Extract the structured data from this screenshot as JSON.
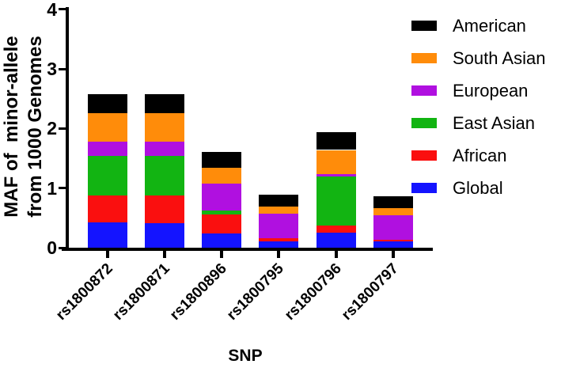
{
  "figure": {
    "background": "#ffffff",
    "axis_color": "#000000"
  },
  "chart_data": {
    "type": "bar",
    "stacked": true,
    "title": "",
    "xlabel": "SNP",
    "ylabel": "MAF of  minor-allele\nfrom 1000 Genomes",
    "ylim": [
      0,
      4
    ],
    "yticks": [
      "0",
      "1",
      "2",
      "3",
      "4"
    ],
    "grid": false,
    "categories": [
      "rs1800872",
      "rs1800871",
      "rs1800896",
      "rs1800795",
      "rs1800796",
      "rs1800797"
    ],
    "series": [
      {
        "name": "Global",
        "color": "#1414FF",
        "values": [
          0.42,
          0.41,
          0.24,
          0.11,
          0.25,
          0.1
        ]
      },
      {
        "name": "African",
        "color": "#FA0F0F",
        "values": [
          0.45,
          0.46,
          0.32,
          0.05,
          0.12,
          0.03
        ]
      },
      {
        "name": "East Asian",
        "color": "#12B412",
        "values": [
          0.67,
          0.67,
          0.07,
          0.0,
          0.83,
          0.0
        ]
      },
      {
        "name": "European",
        "color": "#B010E0",
        "values": [
          0.24,
          0.24,
          0.45,
          0.41,
          0.04,
          0.41
        ]
      },
      {
        "name": "South Asian",
        "color": "#FF8C0A",
        "values": [
          0.48,
          0.48,
          0.26,
          0.12,
          0.4,
          0.13
        ]
      },
      {
        "name": "American",
        "color": "#000000",
        "values": [
          0.32,
          0.32,
          0.27,
          0.2,
          0.3,
          0.19
        ]
      }
    ],
    "totals": [
      2.58,
      2.58,
      1.61,
      0.89,
      1.94,
      0.86
    ],
    "legend": {
      "position": "top-right",
      "order_top_to_bottom": [
        "American",
        "South Asian",
        "European",
        "East Asian",
        "African",
        "Global"
      ]
    }
  }
}
